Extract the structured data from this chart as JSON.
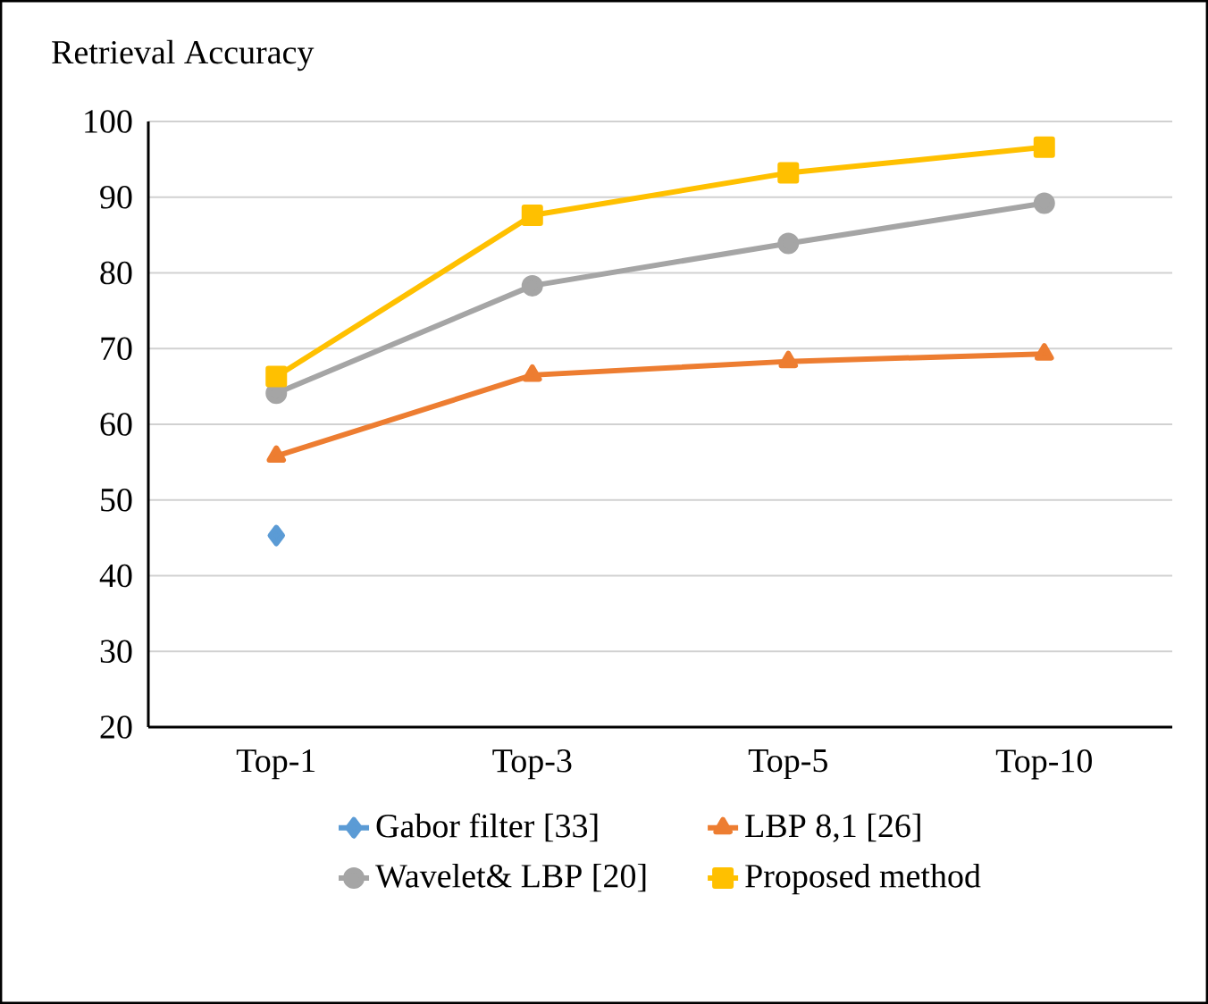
{
  "chart_data": {
    "type": "line",
    "ylabel": "Retrieval Accuracy",
    "categories": [
      "Top-1",
      "Top-3",
      "Top-5",
      "Top-10"
    ],
    "series": [
      {
        "name": "Gabor filter [33]",
        "color": "#5b9bd5",
        "marker": "diamond",
        "values": [
          45.3,
          null,
          null,
          null
        ]
      },
      {
        "name": "LBP 8,1 [26]",
        "color": "#ed7d31",
        "marker": "triangle",
        "values": [
          55.8,
          66.5,
          68.3,
          69.3
        ]
      },
      {
        "name": "Wavelet& LBP [20]",
        "color": "#a5a5a5",
        "marker": "circle",
        "values": [
          64.1,
          78.3,
          83.9,
          89.2
        ]
      },
      {
        "name": "Proposed method",
        "color": "#ffc000",
        "marker": "square",
        "values": [
          66.3,
          87.6,
          93.2,
          96.6
        ]
      }
    ],
    "ylim": [
      20,
      100
    ],
    "yticks": [
      20,
      30,
      40,
      50,
      60,
      70,
      80,
      90,
      100
    ],
    "grid": "y",
    "legend": "bottom",
    "line_style": "solid"
  }
}
